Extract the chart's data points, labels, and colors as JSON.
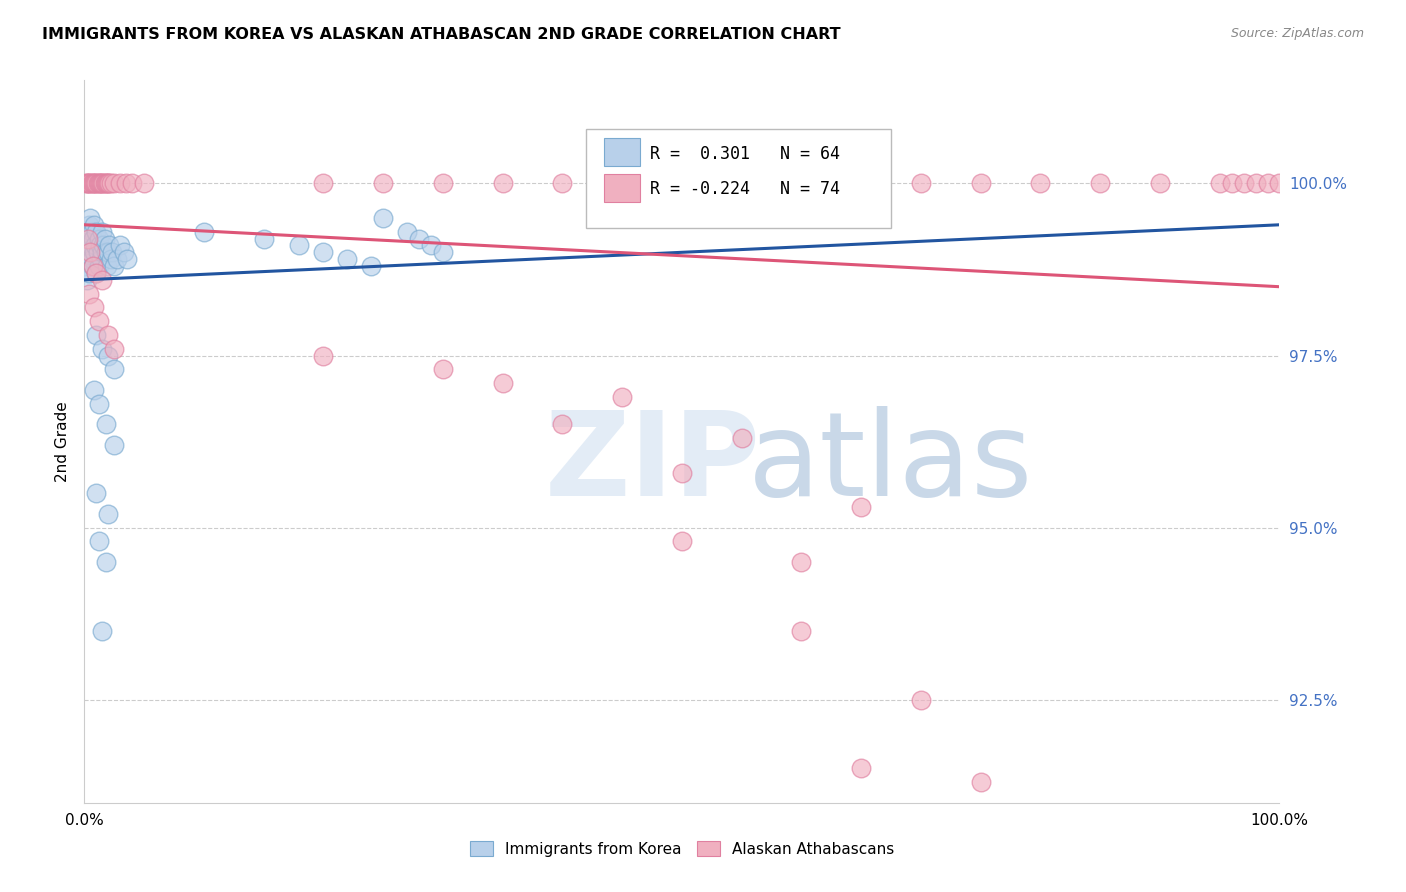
{
  "title": "IMMIGRANTS FROM KOREA VS ALASKAN ATHABASCAN 2ND GRADE CORRELATION CHART",
  "source": "Source: ZipAtlas.com",
  "ylabel": "2nd Grade",
  "yticks": [
    92.5,
    95.0,
    97.5,
    100.0
  ],
  "xlim": [
    0.0,
    1.0
  ],
  "ylim": [
    91.0,
    101.5
  ],
  "legend_blue": "Immigrants from Korea",
  "legend_pink": "Alaskan Athabascans",
  "R_blue": 0.301,
  "N_blue": 64,
  "R_pink": -0.224,
  "N_pink": 74,
  "blue_fill": "#b8d0ea",
  "blue_edge": "#7aaad0",
  "pink_fill": "#f0b0c0",
  "pink_edge": "#e080a0",
  "blue_line": "#2255a0",
  "pink_line": "#dd5577",
  "blue_points_x": [
    0.001,
    0.001,
    0.002,
    0.002,
    0.002,
    0.003,
    0.003,
    0.004,
    0.004,
    0.005,
    0.005,
    0.006,
    0.006,
    0.007,
    0.007,
    0.008,
    0.008,
    0.009,
    0.01,
    0.01,
    0.011,
    0.012,
    0.012,
    0.013,
    0.014,
    0.015,
    0.015,
    0.016,
    0.017,
    0.018,
    0.019,
    0.02,
    0.021,
    0.022,
    0.023,
    0.025,
    0.027,
    0.03,
    0.033,
    0.036,
    0.01,
    0.015,
    0.02,
    0.025,
    0.008,
    0.012,
    0.018,
    0.025,
    0.01,
    0.02,
    0.012,
    0.018,
    0.015,
    0.1,
    0.15,
    0.18,
    0.2,
    0.22,
    0.24,
    0.25,
    0.27,
    0.28,
    0.29,
    0.3
  ],
  "blue_points_y": [
    99.1,
    98.8,
    99.3,
    99.0,
    98.6,
    99.2,
    98.9,
    99.4,
    98.7,
    99.5,
    99.1,
    99.3,
    98.9,
    99.2,
    98.8,
    99.4,
    99.0,
    99.1,
    99.3,
    98.7,
    99.0,
    99.2,
    98.8,
    99.1,
    98.9,
    99.3,
    99.0,
    99.1,
    99.2,
    99.0,
    98.8,
    99.0,
    99.1,
    98.9,
    99.0,
    98.8,
    98.9,
    99.1,
    99.0,
    98.9,
    97.8,
    97.6,
    97.5,
    97.3,
    97.0,
    96.8,
    96.5,
    96.2,
    95.5,
    95.2,
    94.8,
    94.5,
    93.5,
    99.3,
    99.2,
    99.1,
    99.0,
    98.9,
    98.8,
    99.5,
    99.3,
    99.2,
    99.1,
    99.0
  ],
  "pink_points_x": [
    0.001,
    0.002,
    0.003,
    0.004,
    0.005,
    0.006,
    0.007,
    0.008,
    0.009,
    0.01,
    0.011,
    0.012,
    0.013,
    0.014,
    0.015,
    0.016,
    0.017,
    0.018,
    0.019,
    0.02,
    0.021,
    0.022,
    0.025,
    0.03,
    0.035,
    0.04,
    0.05,
    0.2,
    0.25,
    0.3,
    0.35,
    0.4,
    0.5,
    0.55,
    0.6,
    0.65,
    0.7,
    0.75,
    0.8,
    0.85,
    0.9,
    0.95,
    0.96,
    0.97,
    0.98,
    0.99,
    1.0,
    0.003,
    0.005,
    0.007,
    0.01,
    0.015,
    0.004,
    0.008,
    0.012,
    0.02,
    0.025,
    0.2,
    0.3,
    0.35,
    0.45,
    0.4,
    0.55,
    0.5,
    0.65,
    0.5,
    0.6,
    0.6,
    0.7,
    0.65,
    0.75
  ],
  "pink_points_y": [
    100.0,
    100.0,
    100.0,
    100.0,
    100.0,
    100.0,
    100.0,
    100.0,
    100.0,
    100.0,
    100.0,
    100.0,
    100.0,
    100.0,
    100.0,
    100.0,
    100.0,
    100.0,
    100.0,
    100.0,
    100.0,
    100.0,
    100.0,
    100.0,
    100.0,
    100.0,
    100.0,
    100.0,
    100.0,
    100.0,
    100.0,
    100.0,
    100.0,
    100.0,
    100.0,
    100.0,
    100.0,
    100.0,
    100.0,
    100.0,
    100.0,
    100.0,
    100.0,
    100.0,
    100.0,
    100.0,
    100.0,
    99.2,
    99.0,
    98.8,
    98.7,
    98.6,
    98.4,
    98.2,
    98.0,
    97.8,
    97.6,
    97.5,
    97.3,
    97.1,
    96.9,
    96.5,
    96.3,
    95.8,
    95.3,
    94.8,
    94.5,
    93.5,
    92.5,
    91.5,
    91.3
  ],
  "blue_trendline": [
    0.0,
    1.0,
    98.6,
    99.4
  ],
  "pink_trendline": [
    0.0,
    1.0,
    99.4,
    98.5
  ]
}
